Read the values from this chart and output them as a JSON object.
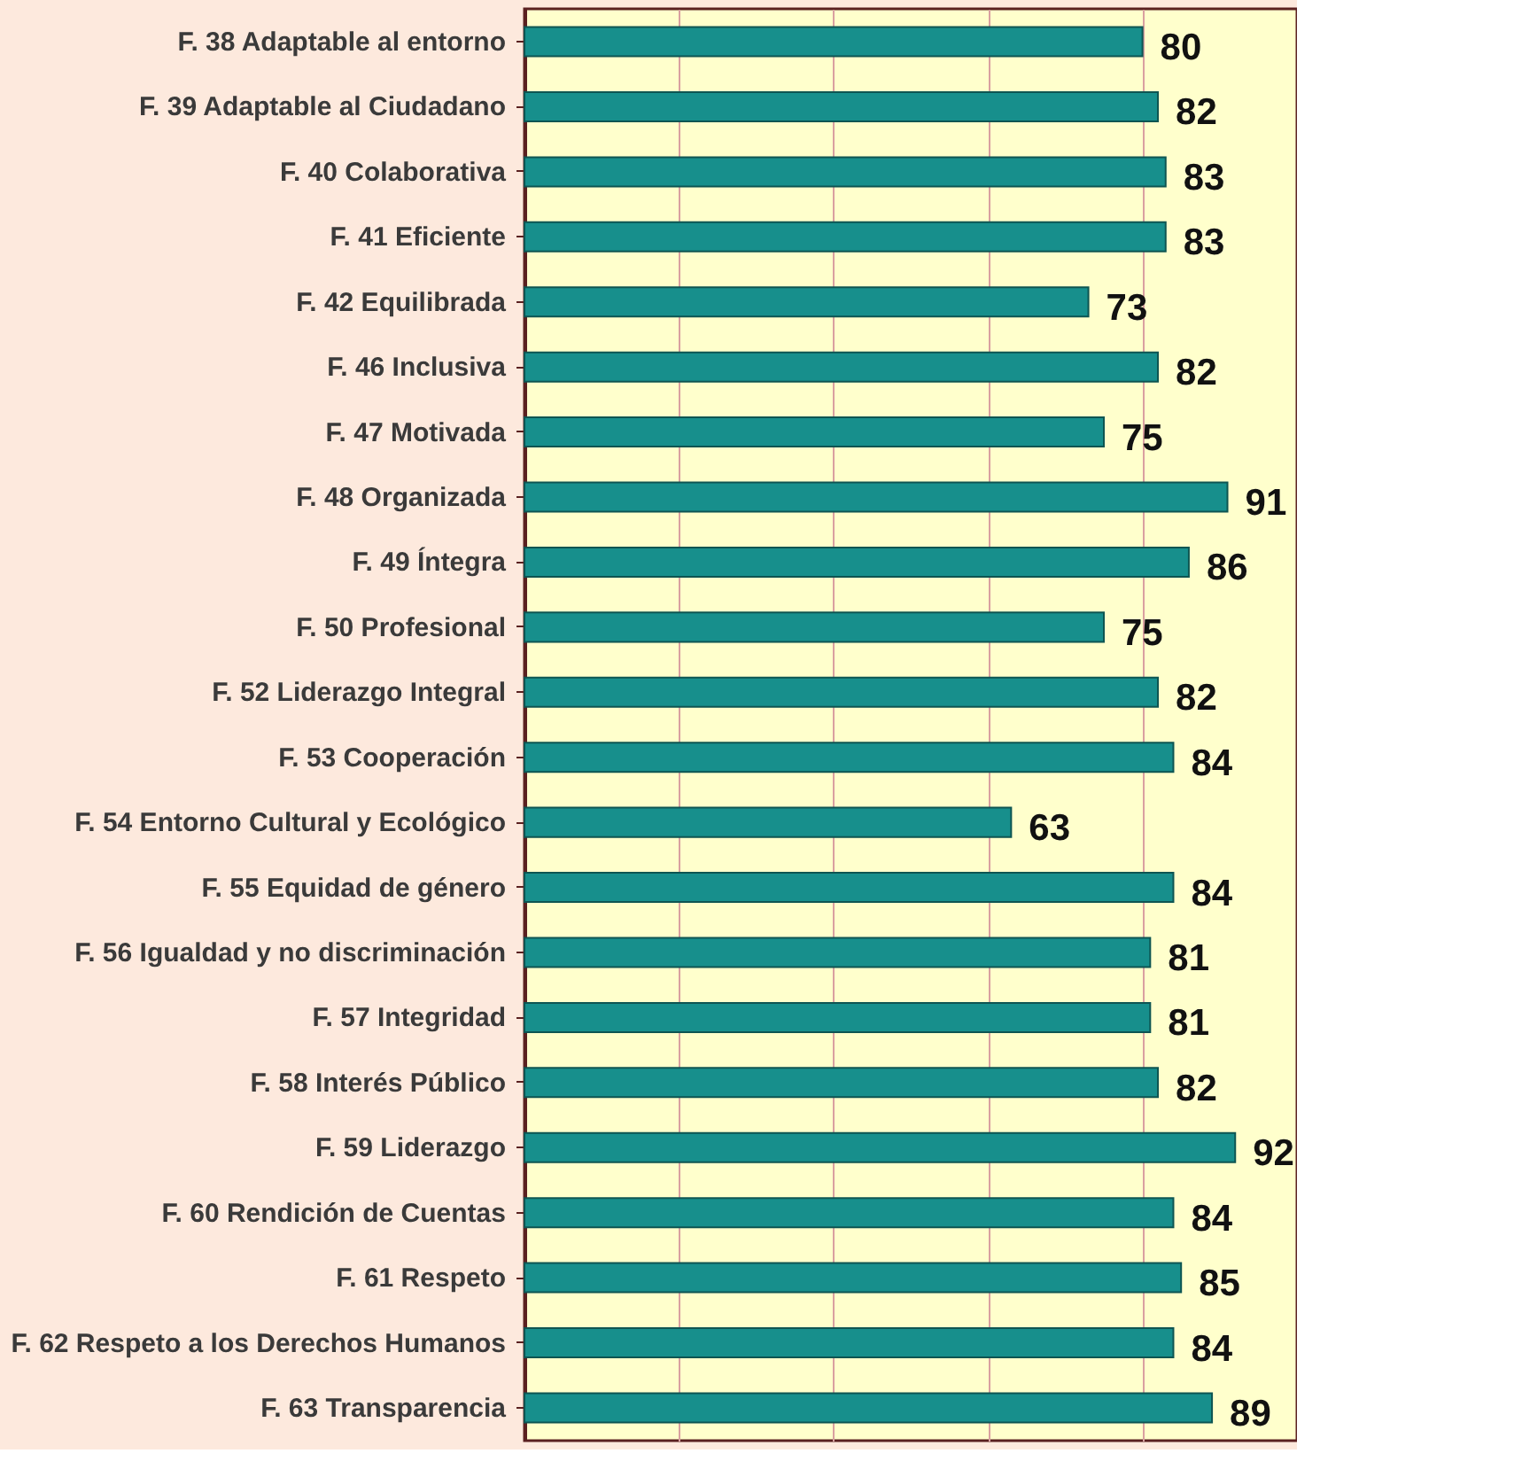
{
  "chart_data": {
    "type": "bar",
    "orientation": "horizontal",
    "categories": [
      "F. 38 Adaptable al entorno",
      "F. 39 Adaptable al Ciudadano",
      "F. 40 Colaborativa",
      "F. 41 Eficiente",
      "F. 42 Equilibrada",
      "F. 46 Inclusiva",
      "F. 47 Motivada",
      "F. 48 Organizada",
      "F. 49 Íntegra",
      "F. 50 Profesional",
      "F. 52 Liderazgo Integral",
      "F. 53 Cooperación",
      "F. 54 Entorno Cultural y Ecológico",
      "F. 55 Equidad de género",
      "F. 56 Igualdad y no discriminación",
      "F. 57 Integridad",
      "F. 58 Interés Público",
      "F. 59 Liderazgo",
      "F. 60 Rendición de Cuentas",
      "F. 61 Respeto",
      "F. 62 Respeto a los Derechos Humanos",
      "F. 63 Transparencia"
    ],
    "values": [
      80,
      82,
      83,
      83,
      73,
      82,
      75,
      91,
      86,
      75,
      82,
      84,
      63,
      84,
      81,
      81,
      82,
      92,
      84,
      85,
      84,
      89
    ],
    "color": "#178f8c",
    "xlim": [
      0,
      100
    ],
    "xticks": [
      {
        "value": 0,
        "label": null
      },
      {
        "value": 20,
        "label": null
      },
      {
        "value": 40,
        "label": null
      },
      {
        "value": 60,
        "label": null
      },
      {
        "value": 80,
        "label": null
      },
      {
        "value": 100,
        "label": null
      }
    ],
    "tick_labels": "y",
    "grid": "x",
    "data_labels": true
  }
}
